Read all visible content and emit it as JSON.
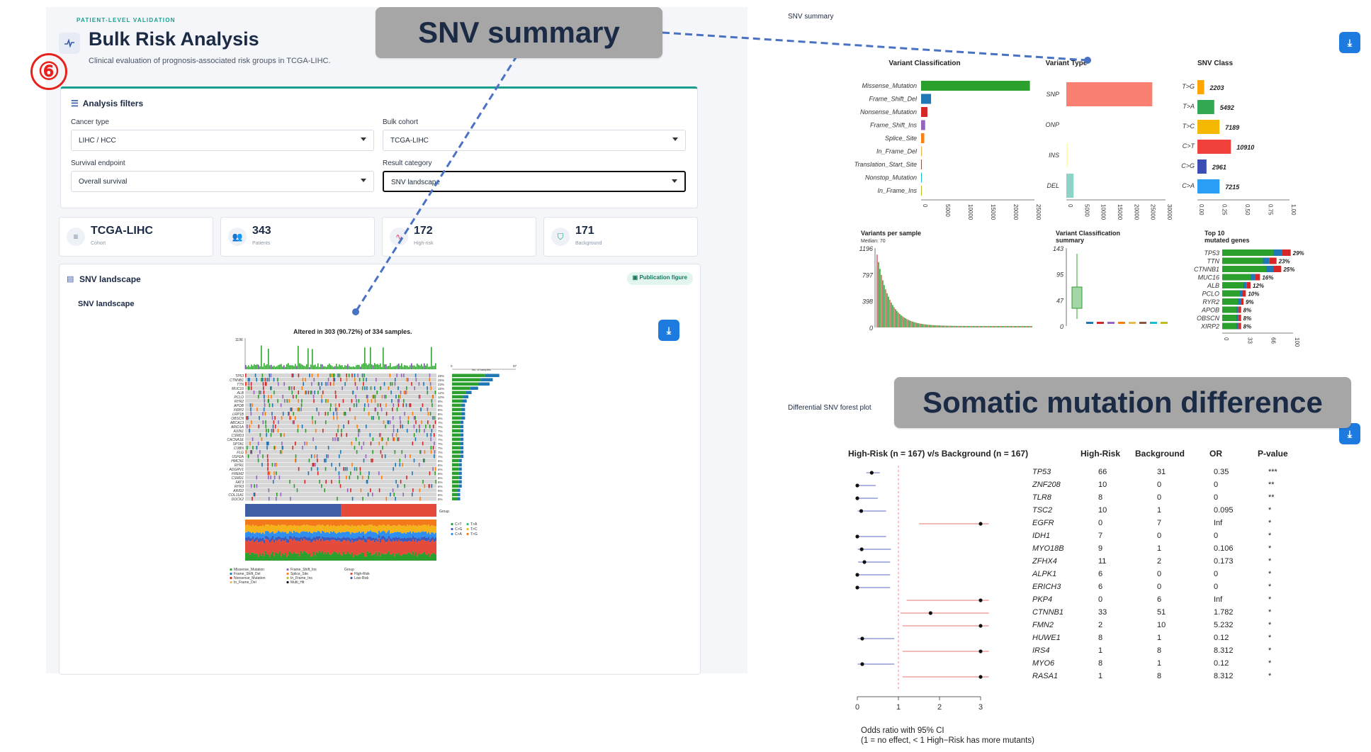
{
  "app": {
    "eyebrow": "PATIENT-LEVEL VALIDATION",
    "title": "Bulk Risk Analysis",
    "subtitle": "Clinical evaluation of prognosis-associated risk groups in TCGA-LIHC.",
    "step_badge": "⑥"
  },
  "filters": {
    "title": "Analysis filters",
    "cancer_type_label": "Cancer type",
    "cancer_type_value": "LIHC / HCC",
    "bulk_cohort_label": "Bulk cohort",
    "bulk_cohort_value": "TCGA-LIHC",
    "survival_endpoint_label": "Survival endpoint",
    "survival_endpoint_value": "Overall survival",
    "result_category_label": "Result category",
    "result_category_value": "SNV landscape"
  },
  "stats": [
    {
      "value": "TCGA-LIHC",
      "label": "Cohort",
      "icon": "database-icon"
    },
    {
      "value": "343",
      "label": "Patients",
      "icon": "users-icon"
    },
    {
      "value": "172",
      "label": "High-risk",
      "icon": "pulse-icon"
    },
    {
      "value": "171",
      "label": "Background",
      "icon": "shield-icon"
    }
  ],
  "landscape": {
    "title": "SNV landscape",
    "publication_button": "Publication figure",
    "sub_title": "SNV landscape"
  },
  "oncoplot": {
    "title": "Altered in 303 (90.72%) of 334 samples.",
    "y_top_tick": "1196",
    "x_label": "No. of samples",
    "x_left_tick": "0",
    "x_right_tick": "97",
    "genes": [
      "TP53",
      "CTNNB1",
      "TTN",
      "MUC16",
      "ALB",
      "PCLO",
      "RYR2",
      "APOB",
      "XIRP2",
      "LRP1B",
      "OBSCN",
      "ABCA13",
      "ARID1A",
      "AXIN1",
      "CSMD3",
      "CACNA1E",
      "SPTA1",
      "CUBN",
      "FLG",
      "USH2A",
      "HMCN1",
      "RYR1",
      "ADGRV1",
      "FREM2",
      "CSMD1",
      "FAT3",
      "RYR3",
      "ARID2",
      "COL11A1",
      "DOCK2"
    ],
    "pcts": [
      "29%",
      "25%",
      "23%",
      "16%",
      "12%",
      "10%",
      "9%",
      "8%",
      "8%",
      "8%",
      "8%",
      "7%",
      "7%",
      "7%",
      "7%",
      "7%",
      "7%",
      "7%",
      "7%",
      "7%",
      "6%",
      "6%",
      "6%",
      "6%",
      "6%",
      "6%",
      "6%",
      "5%",
      "5%",
      "5%"
    ],
    "group_label": "Group",
    "legend_tit": [
      {
        "name": "C>T",
        "color": "#1f9e3b"
      },
      {
        "name": "T>A",
        "color": "#2fbf6f"
      },
      {
        "name": "C>G",
        "color": "#3b5bbf"
      },
      {
        "name": "T>C",
        "color": "#f5b21b"
      },
      {
        "name": "C>A",
        "color": "#2d8ff0"
      },
      {
        "name": "T>G",
        "color": "#f27a1b"
      }
    ],
    "legend_class": [
      "Missense_Mutation",
      "Frame_Shift_Del",
      "Nonsense_Mutation",
      "In_Frame_Del",
      "Frame_Shift_Ins",
      "Splice_Site",
      "In_Frame_Ins",
      "Multi_Hit"
    ],
    "legend_group_title": "Group",
    "legend_group": [
      "High-Risk",
      "Low-Risk"
    ]
  },
  "snv_summary": {
    "panel_title": "SNV summary",
    "callout": "SNV summary",
    "variant_classification_title": "Variant Classification",
    "variant_classification": [
      {
        "name": "Missense_Mutation",
        "value": 24000,
        "color": "#2ca02c"
      },
      {
        "name": "Frame_Shift_Del",
        "value": 2200,
        "color": "#1f77b4"
      },
      {
        "name": "Nonsense_Mutation",
        "value": 1400,
        "color": "#d62728"
      },
      {
        "name": "Frame_Shift_Ins",
        "value": 900,
        "color": "#9467bd"
      },
      {
        "name": "Splice_Site",
        "value": 700,
        "color": "#ff7f0e"
      },
      {
        "name": "In_Frame_Del",
        "value": 200,
        "color": "#e7ba52"
      },
      {
        "name": "Translation_Start_Site",
        "value": 60,
        "color": "#8c564b"
      },
      {
        "name": "Nonstop_Mutation",
        "value": 40,
        "color": "#17becf"
      },
      {
        "name": "In_Frame_Ins",
        "value": 30,
        "color": "#bcbd22"
      }
    ],
    "vc_ticks": [
      "0",
      "5000",
      "10000",
      "15000",
      "20000",
      "25000"
    ],
    "variant_type_title": "Variant Type",
    "variant_type": [
      {
        "name": "SNP",
        "value": 26000,
        "color": "#fa8072"
      },
      {
        "name": "ONP",
        "value": 0,
        "color": "#a6cee3"
      },
      {
        "name": "INS",
        "value": 500,
        "color": "#ffffb3"
      },
      {
        "name": "DEL",
        "value": 2200,
        "color": "#8dd3c7"
      }
    ],
    "vt_ticks": [
      "0",
      "5000",
      "10000",
      "15000",
      "20000",
      "25000",
      "30000"
    ],
    "snv_class_title": "SNV Class",
    "snv_class": [
      {
        "name": "T>G",
        "value": 2203,
        "label": "2203",
        "color": "#ffa500"
      },
      {
        "name": "T>A",
        "value": 5492,
        "label": "5492",
        "color": "#32a852"
      },
      {
        "name": "T>C",
        "value": 7189,
        "label": "7189",
        "color": "#f5b800"
      },
      {
        "name": "C>T",
        "value": 10910,
        "label": "10910",
        "color": "#f0413c"
      },
      {
        "name": "C>G",
        "value": 2961,
        "label": "2961",
        "color": "#3a4db5"
      },
      {
        "name": "C>A",
        "value": 7215,
        "label": "7215",
        "color": "#2a9df4"
      }
    ],
    "sc_ticks": [
      "0.00",
      "0.25",
      "0.50",
      "0.75",
      "1.00"
    ],
    "vps_title": "Variants per sample",
    "vps_median": "Median: 70",
    "vps_ticks": [
      "1196",
      "797",
      "398",
      "0"
    ],
    "vcs_title_1": "Variant Classification",
    "vcs_title_2": "summary",
    "vcs_ticks": [
      "143",
      "95",
      "47",
      "0"
    ],
    "top10_title_1": "Top 10",
    "top10_title_2": "mutated genes",
    "top10": [
      {
        "gene": "TP53",
        "pct": "29%",
        "value": 29
      },
      {
        "gene": "TTN",
        "pct": "23%",
        "value": 23
      },
      {
        "gene": "CTNNB1",
        "pct": "25%",
        "value": 25
      },
      {
        "gene": "MUC16",
        "pct": "16%",
        "value": 16
      },
      {
        "gene": "ALB",
        "pct": "12%",
        "value": 12
      },
      {
        "gene": "PCLO",
        "pct": "10%",
        "value": 10
      },
      {
        "gene": "RYR2",
        "pct": "9%",
        "value": 9
      },
      {
        "gene": "APOB",
        "pct": "8%",
        "value": 8
      },
      {
        "gene": "OBSCN",
        "pct": "8%",
        "value": 8
      },
      {
        "gene": "XIRP2",
        "pct": "8%",
        "value": 8
      }
    ],
    "top10_ticks": [
      "0",
      "33",
      "66",
      "100"
    ]
  },
  "forest": {
    "panel_title": "Differential SNV forest plot",
    "callout": "Somatic mutation difference",
    "header_groups": "High-Risk (n = 167) v/s Background (n = 167)",
    "header_high": "High-Risk",
    "header_bg": "Background",
    "header_or": "OR",
    "header_p": "P-value",
    "rows": [
      {
        "gene": "TP53",
        "high": "66",
        "bg": "31",
        "or": "0.35",
        "p": "***",
        "est": 0.35,
        "lo": 0.22,
        "hi": 0.55
      },
      {
        "gene": "ZNF208",
        "high": "10",
        "bg": "0",
        "or": "0",
        "p": "**",
        "est": 0,
        "lo": 0,
        "hi": 0.45
      },
      {
        "gene": "TLR8",
        "high": "8",
        "bg": "0",
        "or": "0",
        "p": "**",
        "est": 0,
        "lo": 0,
        "hi": 0.5
      },
      {
        "gene": "TSC2",
        "high": "10",
        "bg": "1",
        "or": "0.095",
        "p": "*",
        "est": 0.095,
        "lo": 0.01,
        "hi": 0.7
      },
      {
        "gene": "EGFR",
        "high": "0",
        "bg": "7",
        "or": "Inf",
        "p": "*",
        "est": 3,
        "lo": 1.5,
        "hi": 3.2
      },
      {
        "gene": "IDH1",
        "high": "7",
        "bg": "0",
        "or": "0",
        "p": "*",
        "est": 0,
        "lo": 0,
        "hi": 0.7
      },
      {
        "gene": "MYO18B",
        "high": "9",
        "bg": "1",
        "or": "0.106",
        "p": "*",
        "est": 0.106,
        "lo": 0.01,
        "hi": 0.82
      },
      {
        "gene": "ZFHX4",
        "high": "11",
        "bg": "2",
        "or": "0.173",
        "p": "*",
        "est": 0.173,
        "lo": 0.02,
        "hi": 0.8
      },
      {
        "gene": "ALPK1",
        "high": "6",
        "bg": "0",
        "or": "0",
        "p": "*",
        "est": 0,
        "lo": 0,
        "hi": 0.8
      },
      {
        "gene": "ERICH3",
        "high": "6",
        "bg": "0",
        "or": "0",
        "p": "*",
        "est": 0,
        "lo": 0,
        "hi": 0.8
      },
      {
        "gene": "PKP4",
        "high": "0",
        "bg": "6",
        "or": "Inf",
        "p": "*",
        "est": 3,
        "lo": 1.2,
        "hi": 3.2
      },
      {
        "gene": "CTNNB1",
        "high": "33",
        "bg": "51",
        "or": "1.782",
        "p": "*",
        "est": 1.782,
        "lo": 1.05,
        "hi": 3.2
      },
      {
        "gene": "FMN2",
        "high": "2",
        "bg": "10",
        "or": "5.232",
        "p": "*",
        "est": 3,
        "lo": 1.1,
        "hi": 3.2
      },
      {
        "gene": "HUWE1",
        "high": "8",
        "bg": "1",
        "or": "0.12",
        "p": "*",
        "est": 0.12,
        "lo": 0.01,
        "hi": 0.9
      },
      {
        "gene": "IRS4",
        "high": "1",
        "bg": "8",
        "or": "8.312",
        "p": "*",
        "est": 3,
        "lo": 1.1,
        "hi": 3.2
      },
      {
        "gene": "MYO6",
        "high": "8",
        "bg": "1",
        "or": "0.12",
        "p": "*",
        "est": 0.12,
        "lo": 0.01,
        "hi": 0.9
      },
      {
        "gene": "RASA1",
        "high": "1",
        "bg": "8",
        "or": "8.312",
        "p": "*",
        "est": 3,
        "lo": 1.1,
        "hi": 3.2
      }
    ],
    "x_ticks": [
      "0",
      "1",
      "2",
      "3"
    ],
    "x_label_1": "Odds ratio with 95% CI",
    "x_label_2": "(1 = no effect, < 1 High−Risk has more mutants)"
  }
}
